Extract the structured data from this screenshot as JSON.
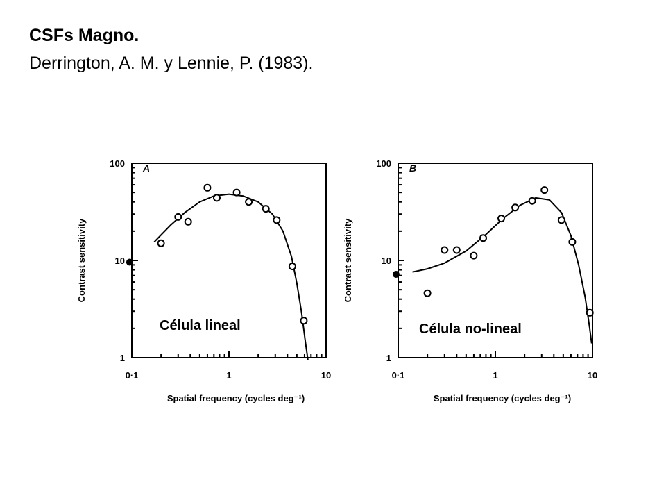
{
  "title": "CSFs Magno.",
  "subtitle": "Derrington, A. M. y Lennie, P. (1983).",
  "colors": {
    "ink": "#000000",
    "background": "#ffffff"
  },
  "chart_data": [
    {
      "type": "scatter",
      "panel_letter": "A",
      "label": "Célula lineal",
      "xlabel": "Spatial frequency (cycles deg⁻¹)",
      "ylabel": "Contrast sensitivity",
      "xscale": "log",
      "yscale": "log",
      "xlim": [
        0.1,
        10
      ],
      "ylim": [
        1,
        100
      ],
      "x_tick_labels": [
        "0·1",
        "1",
        "10"
      ],
      "y_tick_labels": [
        "100",
        "10",
        "1"
      ],
      "grid": false,
      "series": [
        {
          "marker": "open-circle",
          "points": [
            [
              0.2,
              15
            ],
            [
              0.3,
              28
            ],
            [
              0.38,
              25
            ],
            [
              0.6,
              56
            ],
            [
              0.75,
              44
            ],
            [
              1.2,
              50
            ],
            [
              1.6,
              40
            ],
            [
              2.4,
              34
            ],
            [
              3.1,
              26
            ],
            [
              4.5,
              8.7
            ],
            [
              5.9,
              2.4
            ]
          ]
        },
        {
          "marker": "filled-circle",
          "points": [
            [
              0.095,
              9.6
            ]
          ]
        },
        {
          "marker": "line",
          "points": [
            [
              0.17,
              15.5
            ],
            [
              0.25,
              23
            ],
            [
              0.35,
              31
            ],
            [
              0.5,
              40
            ],
            [
              0.7,
              46
            ],
            [
              1.0,
              48
            ],
            [
              1.4,
              46
            ],
            [
              2.0,
              40
            ],
            [
              2.8,
              30
            ],
            [
              3.6,
              20
            ],
            [
              4.4,
              11
            ],
            [
              5.0,
              5.8
            ],
            [
              5.6,
              2.9
            ],
            [
              6.1,
              1.5
            ],
            [
              6.5,
              0.95
            ]
          ]
        }
      ]
    },
    {
      "type": "scatter",
      "panel_letter": "B",
      "label": "Célula no-lineal",
      "xlabel": "Spatial frequency (cycles deg⁻¹)",
      "ylabel": "Contrast sensitivity",
      "xscale": "log",
      "yscale": "log",
      "xlim": [
        0.1,
        10
      ],
      "ylim": [
        1,
        100
      ],
      "x_tick_labels": [
        "0·1",
        "1",
        "10"
      ],
      "y_tick_labels": [
        "100",
        "10",
        "1"
      ],
      "grid": false,
      "series": [
        {
          "marker": "open-circle",
          "points": [
            [
              0.2,
              4.6
            ],
            [
              0.3,
              12.8
            ],
            [
              0.4,
              12.8
            ],
            [
              0.6,
              11.2
            ],
            [
              0.75,
              17
            ],
            [
              1.15,
              27
            ],
            [
              1.6,
              35
            ],
            [
              2.4,
              41
            ],
            [
              3.2,
              53
            ],
            [
              4.8,
              26
            ],
            [
              6.2,
              15.5
            ],
            [
              9.4,
              2.9
            ]
          ]
        },
        {
          "marker": "filled-circle",
          "points": [
            [
              0.095,
              7.2
            ]
          ]
        },
        {
          "marker": "line",
          "points": [
            [
              0.14,
              7.6
            ],
            [
              0.2,
              8.2
            ],
            [
              0.3,
              9.4
            ],
            [
              0.5,
              12.5
            ],
            [
              0.8,
              18.5
            ],
            [
              1.2,
              27
            ],
            [
              1.8,
              37
            ],
            [
              2.6,
              44
            ],
            [
              3.6,
              42
            ],
            [
              4.8,
              31
            ],
            [
              6.0,
              18
            ],
            [
              7.2,
              9
            ],
            [
              8.4,
              4.2
            ],
            [
              9.3,
              2.1
            ],
            [
              9.8,
              1.4
            ]
          ]
        }
      ]
    }
  ]
}
